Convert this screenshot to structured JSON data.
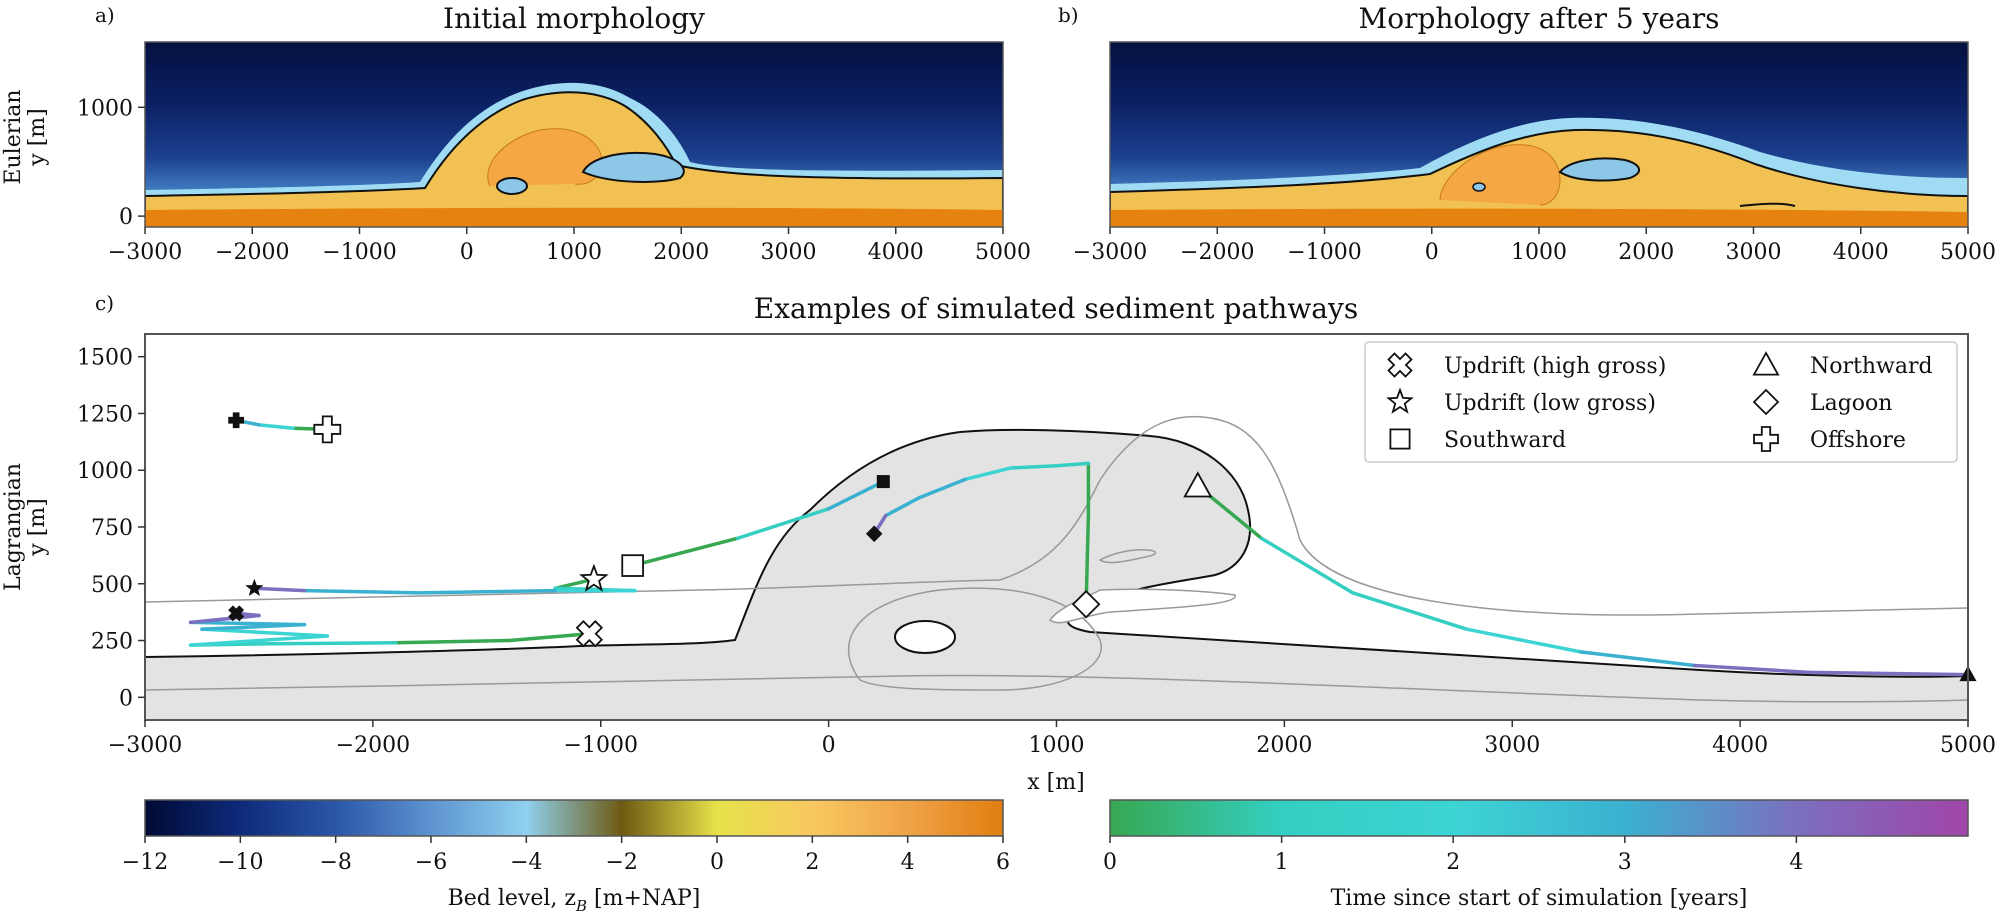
{
  "panels": {
    "a": {
      "letter": "a)",
      "title": "Initial morphology",
      "ylabel_1": "Eulerian",
      "ylabel_2": "y [m]"
    },
    "b": {
      "letter": "b)",
      "title": "Morphology after 5 years"
    },
    "c": {
      "letter": "c)",
      "title": "Examples of simulated sediment pathways",
      "ylabel_1": "Lagrangian",
      "ylabel_2": "y [m]",
      "xlabel": "x [m]"
    }
  },
  "legend": {
    "items": [
      {
        "marker": "x-marker",
        "label": "Updrift (high gross)"
      },
      {
        "marker": "star-marker",
        "label": "Updrift (low gross)"
      },
      {
        "marker": "square-marker",
        "label": "Southward"
      },
      {
        "marker": "triangle-marker",
        "label": "Northward"
      },
      {
        "marker": "diamond-marker",
        "label": "Lagoon"
      },
      {
        "marker": "plus-marker",
        "label": "Offshore"
      }
    ]
  },
  "colorbars": {
    "bed": {
      "label": "Bed level, z",
      "label_sub": "B",
      "label_unit": " [m+NAP]",
      "ticks": [
        "−12",
        "−10",
        "−8",
        "−6",
        "−4",
        "−2",
        "0",
        "2",
        "4",
        "6"
      ],
      "range": [
        -12,
        6
      ],
      "colors": [
        "#000a35",
        "#0e2a7a",
        "#2b56a8",
        "#5d93cf",
        "#8fd1ef",
        "#6e5a12",
        "#e6e24a",
        "#f8c860",
        "#f0a348",
        "#e07e10"
      ]
    },
    "time": {
      "label": "Time since start of simulation [years]",
      "ticks": [
        "0",
        "1",
        "2",
        "3",
        "4"
      ],
      "range": [
        0,
        5
      ],
      "colors": [
        "#37a851",
        "#34cfc2",
        "#3dd4d4",
        "#3ab1d0",
        "#7b6fc0",
        "#a045a8"
      ]
    }
  },
  "chart_data": [
    {
      "type": "heatmap",
      "title": "Initial morphology",
      "xlabel": "",
      "ylabel": "Eulerian\ny [m]",
      "xlim": [
        -3000,
        5000
      ],
      "ylim": [
        -100,
        1600
      ],
      "xticks": [
        "−3000",
        "−2000",
        "−1000",
        "0",
        "1000",
        "2000",
        "3000",
        "4000",
        "5000"
      ],
      "yticks": [
        "0",
        "1000"
      ],
      "colorbar": "Bed level, z_B [m+NAP]"
    },
    {
      "type": "heatmap",
      "title": "Morphology after 5 years",
      "xlabel": "",
      "ylabel": "",
      "xlim": [
        -3000,
        5000
      ],
      "ylim": [
        -100,
        1600
      ],
      "xticks": [
        "−3000",
        "−2000",
        "−1000",
        "0",
        "1000",
        "2000",
        "3000",
        "4000",
        "5000"
      ],
      "yticks": [],
      "colorbar": "Bed level, z_B [m+NAP]"
    },
    {
      "type": "line",
      "title": "Examples of simulated sediment pathways",
      "xlabel": "x [m]",
      "ylabel": "Lagrangian\ny [m]",
      "xlim": [
        -3000,
        5000
      ],
      "ylim": [
        -100,
        1600
      ],
      "xticks": [
        "−3000",
        "−2000",
        "−1000",
        "0",
        "1000",
        "2000",
        "3000",
        "4000",
        "5000"
      ],
      "yticks": [
        "0",
        "250",
        "500",
        "750",
        "1000",
        "1250",
        "1500"
      ],
      "colorbar": "Time since start of simulation [years]",
      "series": [
        {
          "name": "Updrift (high gross)",
          "start": [
            -1050,
            280
          ],
          "end": [
            -2600,
            370
          ],
          "x": [
            -1050,
            -1400,
            -1900,
            -2500,
            -2800,
            -2200,
            -2750,
            -2300,
            -2800,
            -2500,
            -2600
          ],
          "y": [
            280,
            250,
            240,
            235,
            230,
            270,
            300,
            320,
            330,
            360,
            370
          ]
        },
        {
          "name": "Updrift (low gross)",
          "start": [
            -1030,
            520
          ],
          "end": [
            -2520,
            480
          ],
          "x": [
            -1030,
            -1200,
            -850,
            -1200,
            -1800,
            -2300,
            -2520
          ],
          "y": [
            520,
            480,
            470,
            470,
            460,
            470,
            480
          ]
        },
        {
          "name": "Southward",
          "start": [
            -860,
            580
          ],
          "end": [
            240,
            950
          ],
          "x": [
            -860,
            -400,
            0,
            240
          ],
          "y": [
            580,
            700,
            830,
            950
          ]
        },
        {
          "name": "Northward",
          "start": [
            1620,
            930
          ],
          "end": [
            5000,
            100
          ],
          "x": [
            1620,
            1900,
            2300,
            2800,
            3300,
            3800,
            4300,
            5000
          ],
          "y": [
            930,
            700,
            460,
            300,
            200,
            140,
            110,
            100
          ]
        },
        {
          "name": "Lagoon",
          "start": [
            1130,
            410
          ],
          "end": [
            200,
            720
          ],
          "x": [
            1130,
            1140,
            1140,
            1000,
            800,
            600,
            400,
            250,
            200
          ],
          "y": [
            410,
            800,
            1030,
            1020,
            1010,
            960,
            880,
            800,
            720
          ]
        },
        {
          "name": "Offshore",
          "start": [
            -2200,
            1180
          ],
          "end": [
            -2600,
            1220
          ],
          "x": [
            -2200,
            -2350,
            -2500,
            -2600
          ],
          "y": [
            1180,
            1185,
            1200,
            1220
          ]
        }
      ]
    }
  ]
}
